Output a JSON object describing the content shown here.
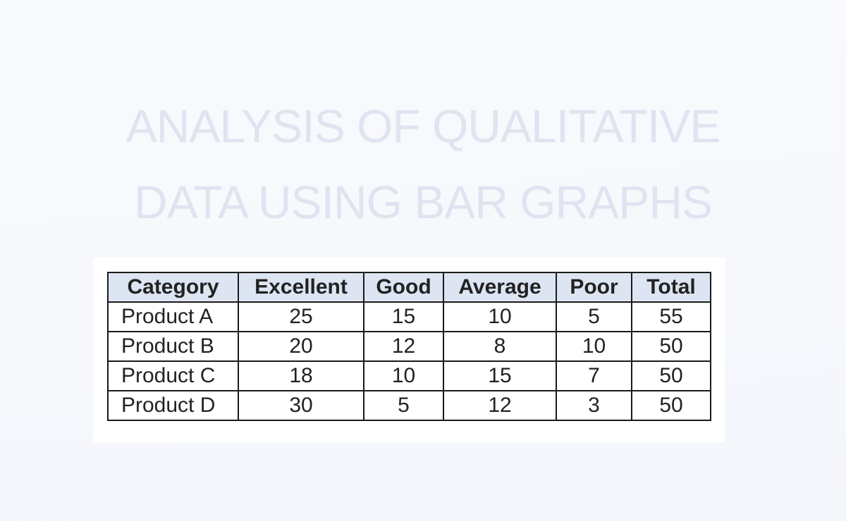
{
  "title": {
    "line1": "ANALYSIS OF QUALITATIVE",
    "line2": "DATA USING BAR GRAPHS"
  },
  "table": {
    "headers": [
      "Category",
      "Excellent",
      "Good",
      "Average",
      "Poor",
      "Total"
    ],
    "rows": [
      [
        "Product A",
        "25",
        "15",
        "10",
        "5",
        "55"
      ],
      [
        "Product B",
        "20",
        "12",
        "8",
        "10",
        "50"
      ],
      [
        "Product C",
        "18",
        "10",
        "15",
        "7",
        "50"
      ],
      [
        "Product D",
        "30",
        "5",
        "12",
        "3",
        "50"
      ]
    ]
  },
  "colors": {
    "header_bg": "#dde4f2",
    "title": "#dfe4f0",
    "background": "#f6f8fc"
  }
}
